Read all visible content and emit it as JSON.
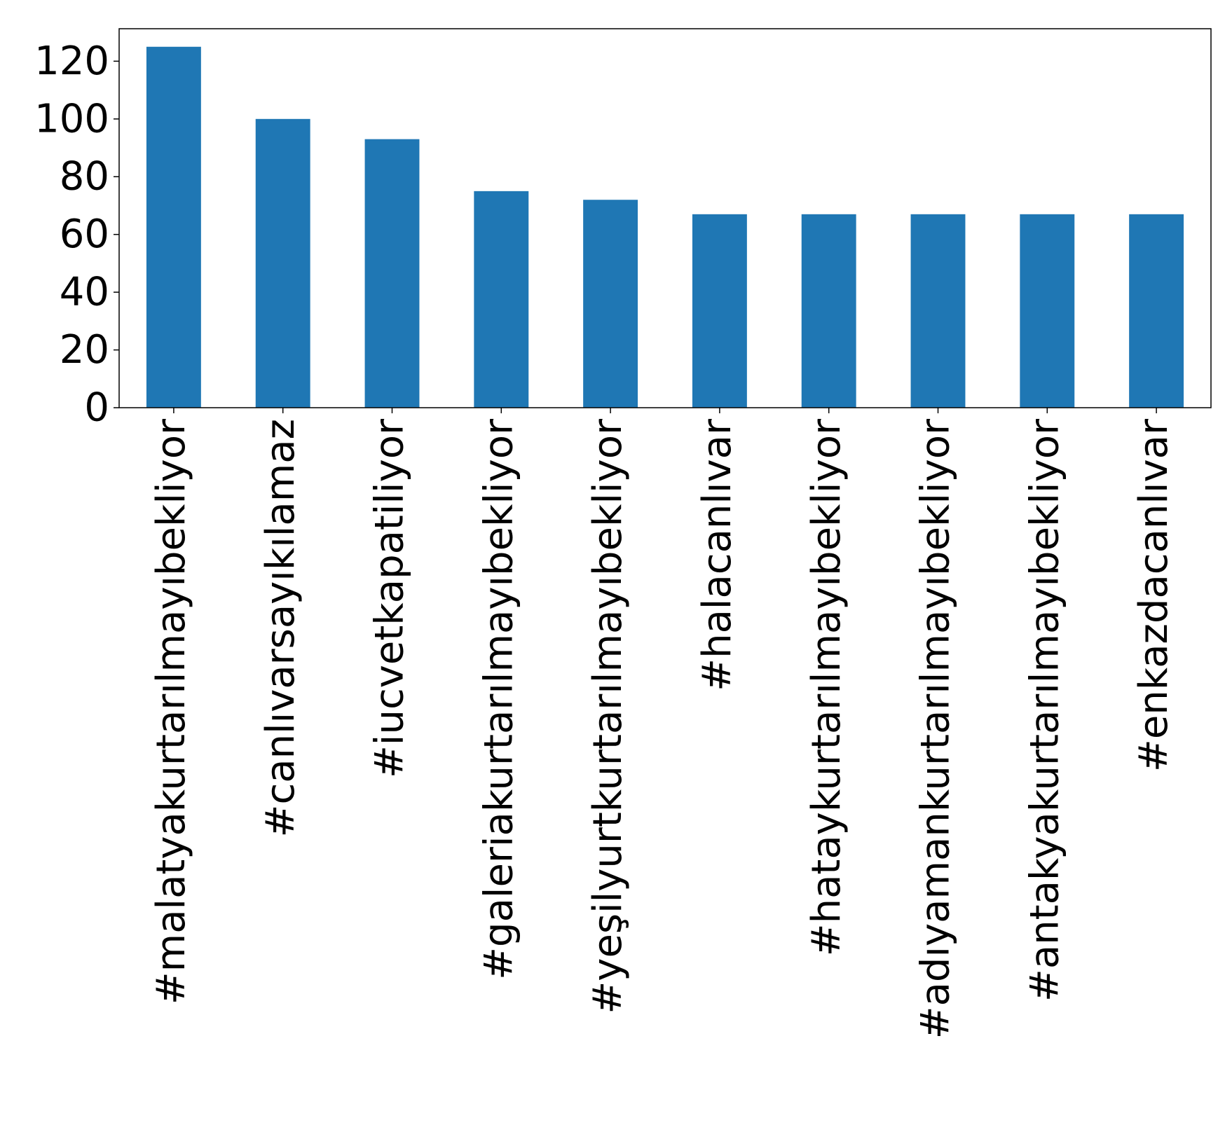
{
  "chart_data": {
    "type": "bar",
    "categories": [
      "#malatyakurtarılmayıbekliyor",
      "#canlıvarsayıkılamaz",
      "#iucvetkapatiliyor",
      "#galeriakurtarılmayıbekliyor",
      "#yeşilyurtkurtarılmayıbekliyor",
      "#halacanlıvar",
      "#hataykurtarılmayıbekliyor",
      "#adıyamankurtarılmayıbekliyor",
      "#antakyakurtarılmayıbekliyor",
      "#enkazdacanlıvar"
    ],
    "values": [
      125,
      100,
      93,
      75,
      72,
      67,
      67,
      67,
      67,
      67
    ],
    "color": "#1f77b4",
    "ylim": [
      0,
      131.25
    ],
    "yticks": [
      0,
      20,
      40,
      60,
      80,
      100,
      120
    ]
  }
}
